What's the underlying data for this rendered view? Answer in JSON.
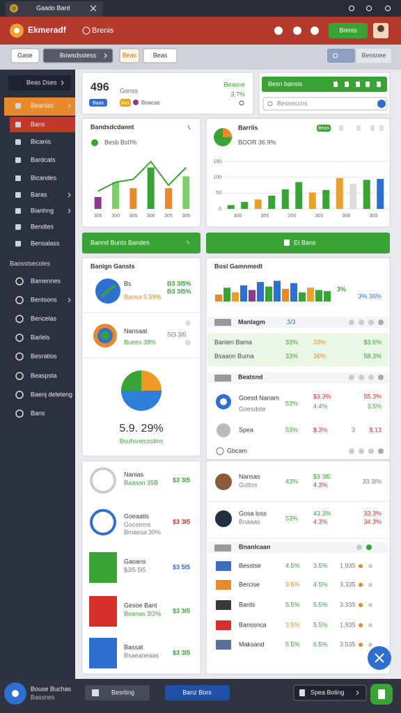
{
  "window": {
    "tab": "Gaado Bard"
  },
  "header": {
    "brand": "Ekmeradf",
    "section": "Brenis",
    "button": "Brenis"
  },
  "toolbar": {
    "buttons": [
      "Gase",
      "Bowsdsstess",
      "Beas",
      "Beas"
    ],
    "right": "Bessnee"
  },
  "sidebar": {
    "selector": "Beas Dses",
    "items": [
      "Beantas",
      "Bans",
      "Bicanis",
      "Bardcats",
      "Bicandes",
      "Baras",
      "Bianhng",
      "Bendtes",
      "Bensalass"
    ],
    "section": "Baosstsecoles",
    "items2": [
      "Bamennes",
      "Bentsons",
      "Bencelas",
      "Barlels",
      "Besratios",
      "Beaspsta",
      "Baenj deleteng",
      "Bans"
    ],
    "profile": [
      "Bouse Buchas",
      "Bassnes"
    ]
  },
  "summary": {
    "value": "496",
    "label": "Gonss",
    "badges": [
      "Baas",
      "Bas",
      "Boacas"
    ],
    "delta": "3,7%",
    "note": "Beasne"
  },
  "search": {
    "title": "Besn bansis",
    "placeholder": "Besseccns"
  },
  "actions": [
    "Bannd Bunts Bandes",
    "Et Bans"
  ],
  "left_list": {
    "title": "Banign Gansts",
    "rows": [
      {
        "name": "Bs",
        "sub": "Baosa 5.59%",
        "values": [
          "B3 3l5%",
          "B3 3l5%"
        ]
      },
      {
        "name": "Nansaat",
        "sub": "Buees 38%",
        "values": [
          "Sl3 3l5"
        ]
      }
    ]
  },
  "left_lower": {
    "rows": [
      {
        "name": "Nanias",
        "subs": [
          "Baason 35B"
        ],
        "value": "$3 3l5"
      },
      {
        "name": "Goeaatis",
        "subs": [
          "Gocomns",
          "Bmassa 30%"
        ],
        "value": "$3 3l5"
      },
      {
        "name": "Gaoans",
        "subs": [
          "$3l5 5l5"
        ],
        "value": "$3 5l5"
      },
      {
        "name": "Gesoe Bant",
        "subs": [
          "Boanas 3l3%"
        ],
        "value": "$3 3l5"
      },
      {
        "name": "Bassat",
        "subs": [
          "Bsaeaoeaas"
        ],
        "value": "$3 3l5"
      }
    ]
  },
  "right_panel": {
    "title": "Bosl Gamnmedt",
    "stats": [
      "3%",
      "3% 36%"
    ],
    "header1": {
      "label": "Manlagm",
      "tag": "3/3"
    },
    "rows1": [
      [
        "Banien Bama",
        "33%",
        "33%",
        "$3.6%"
      ],
      [
        "Bsaaon Buma",
        "33%",
        "36%",
        "58.3%"
      ]
    ],
    "header2": "Beatsnd",
    "rows2": [
      [
        "Goesd Nanam",
        "Goesdste",
        "53%",
        "$3.3%",
        "4.4%",
        "55.3%",
        "3.5%"
      ],
      [
        "Spea",
        "53%",
        "$.3%",
        "3",
        "$.13"
      ]
    ],
    "footer": "Gbcam"
  },
  "right_lower": {
    "rows": [
      [
        "Nansas",
        "Guttos",
        "43%",
        "$3 3l5",
        "4.3%",
        "33 3l%"
      ],
      [
        "Gosa loss",
        "Bnaaas",
        "53%",
        "43.3%",
        "4.3%",
        "33.3%",
        "34.3%"
      ]
    ],
    "header": "Bnanlcaan",
    "list": [
      [
        "Besstse",
        "4.5%",
        "3.5%",
        "1,935"
      ],
      [
        "Bercise",
        "3.5%",
        "4.5%",
        "3.335"
      ],
      [
        "Bards",
        "5.5%",
        "5.5%",
        "3.335"
      ],
      [
        "Banssnca",
        "3.5%",
        "5.5%",
        "1,935"
      ],
      [
        "Maksand",
        "5.5%",
        "6.5%",
        "3.535"
      ]
    ]
  },
  "bottom": [
    "Besrting",
    "Banz Bors",
    "Spea Boling"
  ],
  "chart_data": [
    {
      "type": "bar",
      "title": "Bandsdcdannt",
      "subtitle": "Besb Bs0%",
      "categories": [
        "305",
        "300",
        "305",
        "306",
        "305",
        "305"
      ],
      "values": [
        20,
        45,
        35,
        70,
        35,
        55
      ],
      "colors": [
        "#8b3a8f",
        "#7ccf6a",
        "#e8892b",
        "#3aa335",
        "#e8892b",
        "#7ccf6a"
      ],
      "line_values": [
        30,
        45,
        50,
        80,
        40,
        70
      ],
      "line_color": "#3aa335",
      "ylim": [
        0,
        100
      ]
    },
    {
      "type": "bar",
      "title": "Barrlis",
      "subtitle": "BOOR 36.9%",
      "badge": "Beas",
      "categories": [
        "300",
        null,
        "305",
        null,
        "200",
        null,
        "300",
        null,
        "306",
        null,
        "305",
        null
      ],
      "values": [
        12,
        22,
        30,
        42,
        62,
        85,
        52,
        60,
        98,
        80,
        92,
        95
      ],
      "colors": [
        "#3aa335",
        "#3aa335",
        "#e8a22b",
        "#3aa335",
        "#3aa335",
        "#3aa335",
        "#e8a22b",
        "#3aa335",
        "#e8a22b",
        "#dddddd",
        "#3aa335",
        "#2e6fd0"
      ],
      "ylim": [
        0,
        150
      ],
      "yticks": [
        0,
        50,
        100,
        150
      ],
      "grid": true
    },
    {
      "type": "bar",
      "values": [
        30,
        60,
        40,
        70,
        50,
        85,
        65,
        90,
        55,
        80,
        40,
        60,
        50,
        45
      ],
      "colors": [
        "#e8892b",
        "#3aa335",
        "#e8a22b",
        "#2e6fd0",
        "#8b3a8f",
        "#2e6fd0",
        "#3aa335",
        "#2e6fd0",
        "#e8892b",
        "#2e6fd0",
        "#3aa335",
        "#e8a22b",
        "#3aa335",
        "#3aa335"
      ],
      "ylim": [
        0,
        100
      ]
    },
    {
      "type": "pie",
      "values": [
        25,
        50,
        25
      ],
      "colors": [
        "#ee9a24",
        "#2e7fd9",
        "#3aa335"
      ],
      "label": "5.9. 29%",
      "sublabel": "Bsuhsnecsstins"
    }
  ]
}
